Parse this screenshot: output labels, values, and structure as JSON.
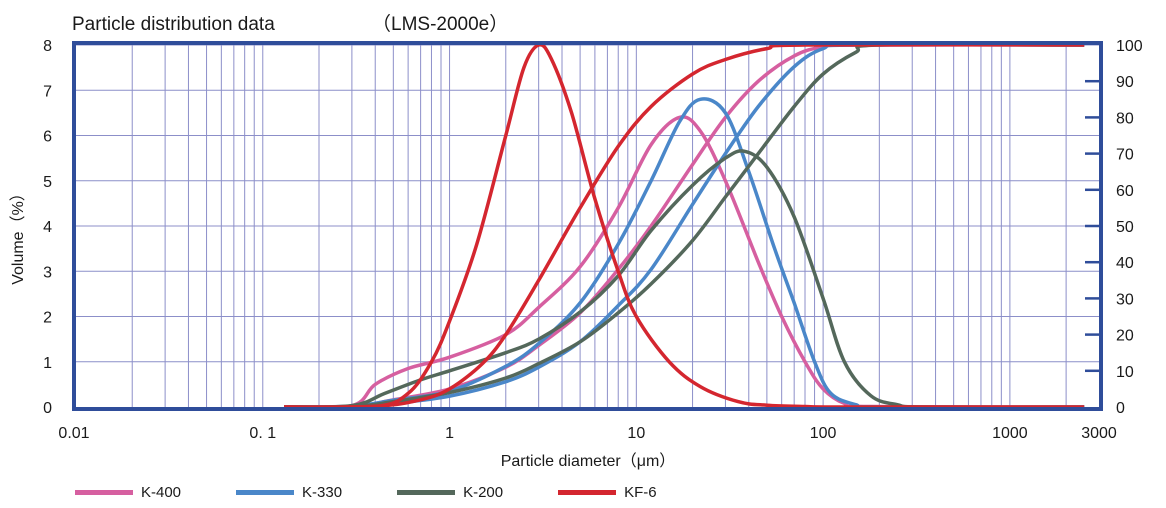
{
  "chart_data": {
    "type": "line",
    "title": "Particle distribution data",
    "subtitle": "（LMS-2000e）",
    "xlabel": "Particle diameter（μm）",
    "ylabel": "Volume（%）",
    "x_scale": "log",
    "xlim": [
      0.01,
      3000
    ],
    "ylim": [
      0,
      8
    ],
    "y2lim": [
      0,
      100
    ],
    "x_ticks": [
      0.01,
      0.1,
      1,
      10,
      100,
      1000,
      3000
    ],
    "x_tick_labels": [
      "0.01",
      "0. 1",
      "1",
      "10",
      "100",
      "1000",
      "3000"
    ],
    "y_ticks": [
      0,
      1,
      2,
      3,
      4,
      5,
      6,
      7,
      8
    ],
    "y_tick_labels": [
      "0",
      "1",
      "2",
      "3",
      "4",
      "5",
      "6",
      "7",
      "8"
    ],
    "y2_ticks": [
      0,
      10,
      20,
      30,
      40,
      50,
      60,
      70,
      80,
      90,
      100
    ],
    "y2_tick_labels": [
      "0",
      "10",
      "20",
      "30",
      "40",
      "50",
      "60",
      "70",
      "80",
      "90",
      "100"
    ],
    "grid": true,
    "legend_position": "bottom",
    "frame_color": "#2f4d9a",
    "grid_color": "#8c8fc9",
    "series": [
      {
        "name": "K-400",
        "color": "#d65fa0",
        "frequency": [
          [
            0.13,
            0
          ],
          [
            0.3,
            0.03
          ],
          [
            0.4,
            0.5
          ],
          [
            0.6,
            0.85
          ],
          [
            1,
            1.1
          ],
          [
            2,
            1.6
          ],
          [
            3,
            2.2
          ],
          [
            5,
            3.1
          ],
          [
            8,
            4.4
          ],
          [
            12,
            5.8
          ],
          [
            17,
            6.4
          ],
          [
            22,
            6.1
          ],
          [
            30,
            5.0
          ],
          [
            45,
            3.2
          ],
          [
            60,
            2.0
          ],
          [
            80,
            1.0
          ],
          [
            100,
            0.4
          ],
          [
            130,
            0.08
          ],
          [
            180,
            0.01
          ],
          [
            2500,
            0
          ]
        ],
        "cumulative": [
          [
            0.13,
            0
          ],
          [
            0.3,
            0.1
          ],
          [
            0.5,
            2
          ],
          [
            1,
            5
          ],
          [
            2,
            11
          ],
          [
            3,
            17
          ],
          [
            5,
            26
          ],
          [
            8,
            38
          ],
          [
            12,
            50
          ],
          [
            20,
            67
          ],
          [
            30,
            80
          ],
          [
            45,
            90
          ],
          [
            70,
            97
          ],
          [
            100,
            99.5
          ],
          [
            150,
            100
          ],
          [
            2500,
            100
          ]
        ]
      },
      {
        "name": "K-330",
        "color": "#4a87c9",
        "frequency": [
          [
            0.13,
            0
          ],
          [
            0.3,
            0.02
          ],
          [
            0.5,
            0.15
          ],
          [
            1,
            0.35
          ],
          [
            2,
            0.9
          ],
          [
            3,
            1.4
          ],
          [
            5,
            2.3
          ],
          [
            8,
            3.6
          ],
          [
            12,
            5.0
          ],
          [
            17,
            6.3
          ],
          [
            22,
            6.8
          ],
          [
            30,
            6.5
          ],
          [
            40,
            5.2
          ],
          [
            55,
            3.5
          ],
          [
            70,
            2.3
          ],
          [
            90,
            1.0
          ],
          [
            110,
            0.3
          ],
          [
            150,
            0.05
          ],
          [
            200,
            0
          ],
          [
            2500,
            0
          ]
        ],
        "cumulative": [
          [
            0.13,
            0
          ],
          [
            0.3,
            0.1
          ],
          [
            0.5,
            1
          ],
          [
            1,
            3
          ],
          [
            2,
            7
          ],
          [
            3,
            11
          ],
          [
            5,
            18
          ],
          [
            8,
            28
          ],
          [
            12,
            38
          ],
          [
            20,
            56
          ],
          [
            30,
            70
          ],
          [
            45,
            83
          ],
          [
            70,
            94
          ],
          [
            100,
            99
          ],
          [
            150,
            100
          ],
          [
            2500,
            100
          ]
        ]
      },
      {
        "name": "K-200",
        "color": "#54685b",
        "frequency": [
          [
            0.13,
            0
          ],
          [
            0.3,
            0.03
          ],
          [
            0.45,
            0.3
          ],
          [
            0.7,
            0.6
          ],
          [
            1,
            0.8
          ],
          [
            2,
            1.2
          ],
          [
            3,
            1.5
          ],
          [
            5,
            2.1
          ],
          [
            8,
            2.9
          ],
          [
            12,
            3.9
          ],
          [
            20,
            4.9
          ],
          [
            30,
            5.5
          ],
          [
            38,
            5.65
          ],
          [
            50,
            5.3
          ],
          [
            70,
            4.2
          ],
          [
            100,
            2.4
          ],
          [
            130,
            1.0
          ],
          [
            180,
            0.25
          ],
          [
            250,
            0.05
          ],
          [
            350,
            0
          ],
          [
            2500,
            0
          ]
        ],
        "cumulative": [
          [
            0.13,
            0
          ],
          [
            0.3,
            0.1
          ],
          [
            0.5,
            1.5
          ],
          [
            1,
            4
          ],
          [
            2,
            8
          ],
          [
            3,
            12
          ],
          [
            5,
            18
          ],
          [
            8,
            26
          ],
          [
            12,
            34
          ],
          [
            20,
            46
          ],
          [
            30,
            58
          ],
          [
            45,
            70
          ],
          [
            70,
            83
          ],
          [
            100,
            92
          ],
          [
            150,
            98
          ],
          [
            200,
            100
          ],
          [
            2500,
            100
          ]
        ]
      },
      {
        "name": "KF-6",
        "color": "#d4262f",
        "frequency": [
          [
            0.13,
            0
          ],
          [
            0.4,
            0.01
          ],
          [
            0.6,
            0.3
          ],
          [
            0.8,
            1.0
          ],
          [
            1,
            1.9
          ],
          [
            1.4,
            3.6
          ],
          [
            2,
            6.0
          ],
          [
            2.5,
            7.5
          ],
          [
            3,
            8.0
          ],
          [
            3.5,
            7.7
          ],
          [
            4.5,
            6.5
          ],
          [
            6,
            4.6
          ],
          [
            8,
            3.0
          ],
          [
            10,
            2.0
          ],
          [
            15,
            1.0
          ],
          [
            22,
            0.45
          ],
          [
            35,
            0.12
          ],
          [
            50,
            0.04
          ],
          [
            80,
            0.01
          ],
          [
            130,
            0
          ],
          [
            2500,
            0
          ]
        ],
        "cumulative": [
          [
            0.13,
            0
          ],
          [
            0.4,
            0.2
          ],
          [
            0.7,
            2
          ],
          [
            1,
            5
          ],
          [
            1.5,
            12
          ],
          [
            2,
            20
          ],
          [
            3,
            35
          ],
          [
            5,
            55
          ],
          [
            8,
            72
          ],
          [
            12,
            83
          ],
          [
            20,
            92
          ],
          [
            30,
            96
          ],
          [
            50,
            99
          ],
          [
            80,
            100
          ],
          [
            2500,
            100
          ]
        ]
      }
    ]
  }
}
